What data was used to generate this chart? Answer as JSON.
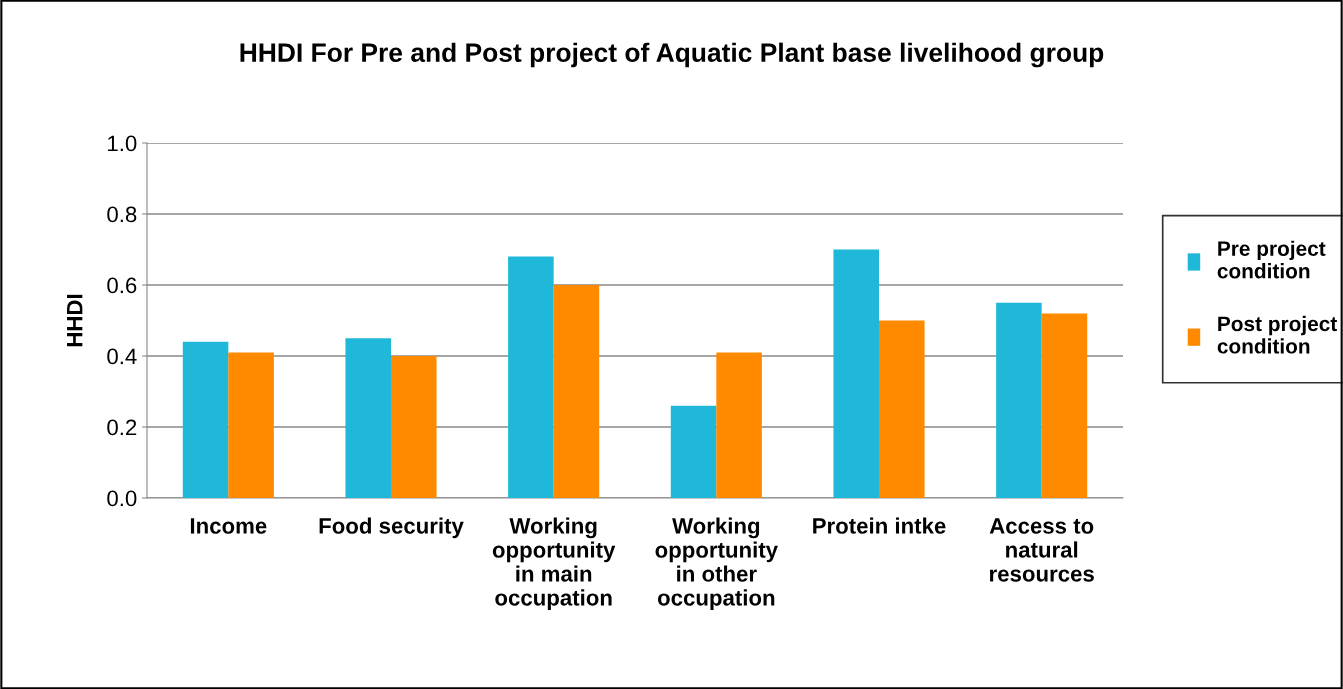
{
  "chart_data": {
    "type": "bar",
    "title": "HHDI For Pre and Post project of Aquatic Plant base livelihood group",
    "ylabel": "HHDI",
    "categories": [
      "Income",
      "Food security",
      "Working\nopportunity\nin main\noccupation",
      "Working\nopportunity\nin other\noccupation",
      "Protein intke",
      "Access to\nnatural\nresources"
    ],
    "series": [
      {
        "name": "Pre project\ncondition",
        "color": "#1fb8d8",
        "values": [
          0.44,
          0.45,
          0.68,
          0.26,
          0.7,
          0.55
        ]
      },
      {
        "name": "Post project\ncondition",
        "color": "#ff8a00",
        "values": [
          0.41,
          0.4,
          0.6,
          0.41,
          0.5,
          0.52
        ]
      }
    ],
    "ylim": [
      0,
      1.0
    ],
    "yticks": [
      {
        "value": 0,
        "label": "0.0"
      },
      {
        "value": 0.2,
        "label": "0.2"
      },
      {
        "value": 0.4,
        "label": "0.4"
      },
      {
        "value": 0.6,
        "label": "0.6"
      },
      {
        "value": 0.8,
        "label": "0.8"
      },
      {
        "value": 1.0,
        "label": "1.0"
      }
    ],
    "grid": "y",
    "legend": "right"
  }
}
